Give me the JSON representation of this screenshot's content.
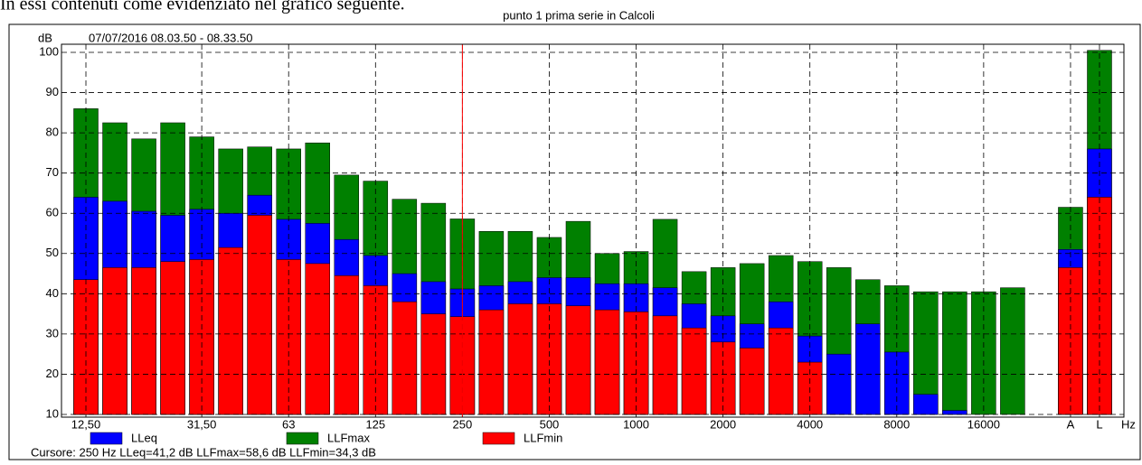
{
  "intro": "In essi contenuti come evidenziato nel grafico seguente.",
  "chart_data": {
    "type": "bar",
    "title": "punto 1 prima serie in Calcoli",
    "subtitle": "07/07/2016 08.03.50 - 08.33.50",
    "y_label": "dB",
    "x_unit": "Hz",
    "categories": [
      "12,50",
      null,
      null,
      null,
      "31,50",
      null,
      null,
      "63",
      null,
      null,
      "125",
      null,
      null,
      "250",
      null,
      null,
      "500",
      null,
      null,
      "1000",
      null,
      null,
      "2000",
      null,
      null,
      "4000",
      null,
      null,
      "8000",
      null,
      null,
      "16000",
      null,
      null,
      "A",
      "L"
    ],
    "series": [
      {
        "name": "LLFmax",
        "color": "#008000",
        "values": [
          86,
          82.5,
          78.5,
          82.5,
          79,
          76,
          76.5,
          76,
          77.5,
          69.5,
          68,
          63.5,
          62.5,
          58.6,
          55.5,
          55.5,
          54,
          58,
          50,
          50.5,
          58.5,
          45.5,
          46.5,
          47.5,
          49.5,
          48,
          46.5,
          43.5,
          42,
          40.5,
          40.5,
          40.5,
          41.5,
          null,
          61.5,
          100.5
        ]
      },
      {
        "name": "LLeq",
        "color": "#0000ff",
        "values": [
          64,
          63,
          60.5,
          59.5,
          61,
          60,
          64.5,
          58.5,
          57.5,
          53.5,
          49.5,
          45,
          43,
          41.2,
          42,
          43,
          44,
          44,
          42.5,
          42.5,
          41.5,
          37.5,
          34.5,
          32.5,
          38,
          29.5,
          25,
          32.5,
          25.5,
          15,
          11,
          null,
          null,
          null,
          51,
          76
        ]
      },
      {
        "name": "LLFmin",
        "color": "#ff0000",
        "values": [
          43.5,
          46.5,
          46.5,
          48,
          48.5,
          51.5,
          59.5,
          48.5,
          47.5,
          44.5,
          42,
          38,
          35,
          34.3,
          36,
          37.5,
          37.5,
          37,
          36,
          35.5,
          34.5,
          31.5,
          28,
          26.5,
          31.5,
          23,
          null,
          null,
          null,
          null,
          null,
          null,
          null,
          null,
          46.5,
          64
        ]
      }
    ],
    "legend_order": [
      1,
      0,
      2
    ],
    "ylim": [
      10,
      100
    ],
    "yticks": [
      10,
      20,
      30,
      40,
      50,
      60,
      70,
      80,
      90,
      100
    ],
    "grid": true,
    "cursor_index": 13,
    "cursor_text": "Cursore: 250 Hz  LLeq=41,2 dB  LLFmax=58,6 dB  LLFmin=34,3 dB"
  }
}
